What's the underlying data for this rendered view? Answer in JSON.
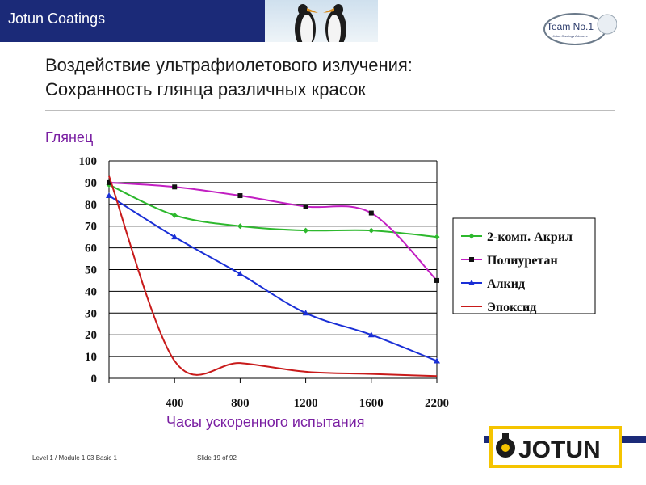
{
  "header": {
    "brand": "Jotun Coatings",
    "badge_title": "Team No.1",
    "badge_sub": "Jotun Coatings Advisers"
  },
  "slide": {
    "title_line1": "Воздействие ультрафиолетового излучения:",
    "title_line2": "Сохранность глянца различных красок"
  },
  "footer": {
    "left": "Level 1 / Module 1.03 Basic 1",
    "slide": "Slide 19 of 92",
    "logo": "JOTUN"
  },
  "colors": {
    "brand_blue": "#1b2a78",
    "axis_label": "#7a1fa2",
    "logo_yellow": "#f5c400"
  },
  "chart_data": {
    "type": "line",
    "ylabel": "Глянец",
    "xlabel": "Часы ускоренного испытания",
    "x": [
      0,
      400,
      800,
      1200,
      1600,
      2200
    ],
    "x_tick_labels": [
      "400",
      "800",
      "1200",
      "1600",
      "2200"
    ],
    "y_ticks": [
      0,
      10,
      20,
      30,
      40,
      50,
      60,
      70,
      80,
      90,
      100
    ],
    "ylim": [
      0,
      100
    ],
    "grid": "horizontal",
    "legend_position": "right",
    "series": [
      {
        "name": "2-комп. Акрил",
        "color": "#2db82d",
        "marker": "diamond",
        "values": [
          89,
          75,
          70,
          68,
          68,
          65
        ]
      },
      {
        "name": "Полиуретан",
        "color": "#c21fc2",
        "marker": "square",
        "values": [
          90,
          88,
          84,
          79,
          76,
          45
        ]
      },
      {
        "name": "Алкид",
        "color": "#1a2fd6",
        "marker": "triangle",
        "values": [
          84,
          65,
          48,
          30,
          20,
          8
        ]
      },
      {
        "name": "Эпоксид",
        "color": "#c81a1a",
        "marker": "none",
        "values": [
          93,
          8,
          7,
          3,
          2,
          1
        ]
      }
    ]
  }
}
